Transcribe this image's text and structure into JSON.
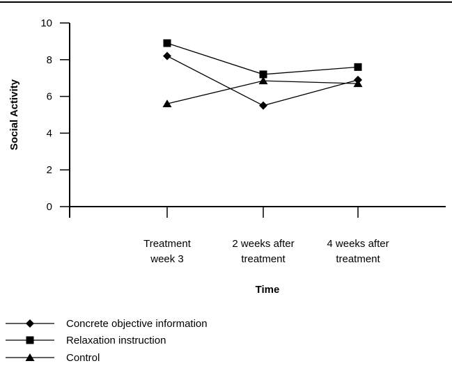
{
  "chart_data": {
    "type": "line",
    "title": "",
    "xlabel": "Time",
    "ylabel": "Social Activity",
    "categories": [
      [
        "Treatment",
        "week 3"
      ],
      [
        "2 weeks after",
        "treatment"
      ],
      [
        "4 weeks after",
        "treatment"
      ]
    ],
    "ylim": [
      0,
      10
    ],
    "yticks": [
      "0",
      "2",
      "4",
      "6",
      "8",
      "10"
    ],
    "grid": false,
    "legend_position": "bottom-left",
    "series": [
      {
        "name": "Concrete objective information",
        "marker": "diamond",
        "values": [
          8.2,
          5.5,
          6.9
        ]
      },
      {
        "name": "Relaxation instruction",
        "marker": "square",
        "values": [
          8.9,
          7.2,
          7.6
        ]
      },
      {
        "name": "Control",
        "marker": "triangle",
        "values": [
          5.6,
          6.85,
          6.7
        ]
      }
    ],
    "colors": {
      "line": "#000000",
      "marker": "#000000",
      "background": "#ffffff"
    }
  }
}
